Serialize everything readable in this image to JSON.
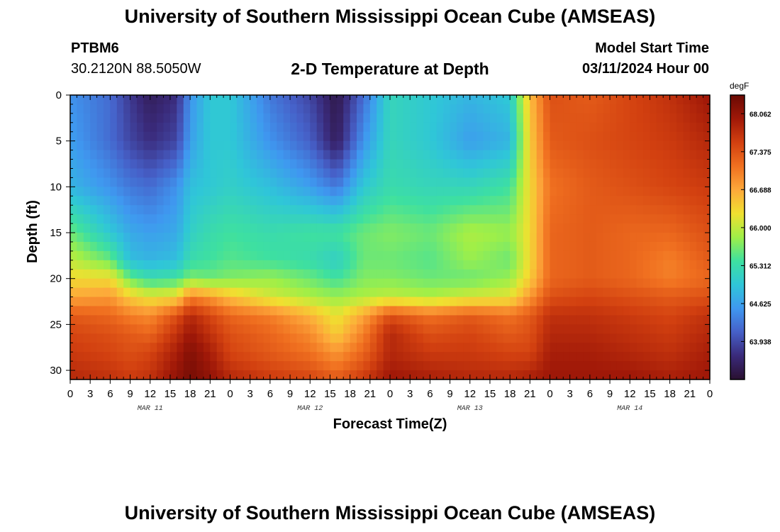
{
  "header": {
    "title": "University of Southern Mississippi Ocean Cube (AMSEAS)",
    "station": "PTBM6",
    "coords": "30.2120N  88.5050W",
    "subtitle": "2-D Temperature at Depth",
    "start_label": "Model Start Time",
    "start_value": "03/11/2024 Hour 00"
  },
  "footer": {
    "title": "University of Southern Mississippi Ocean Cube (AMSEAS)"
  },
  "chart_data": {
    "type": "heatmap",
    "title": "2-D Temperature at Depth",
    "xlabel": "Forecast Time(Z)",
    "ylabel": "Depth (ft)",
    "x_range_hours": [
      0,
      96
    ],
    "ylim": [
      0,
      31
    ],
    "y_inverted": true,
    "x_tick_labels": [
      "0",
      "3",
      "6",
      "9",
      "12",
      "15",
      "18",
      "21",
      "0",
      "3",
      "6",
      "9",
      "12",
      "15",
      "18",
      "21",
      "0",
      "3",
      "6",
      "9",
      "12",
      "15",
      "18",
      "21",
      "0",
      "3",
      "6",
      "9",
      "12",
      "15",
      "18",
      "21",
      "0"
    ],
    "y_ticks": [
      0,
      5,
      10,
      15,
      20,
      25,
      30
    ],
    "day_labels": [
      "MAR 11",
      "MAR 12",
      "MAR 13",
      "MAR 14"
    ],
    "colorbar": {
      "unit": "degF",
      "ticks": [
        "68.062",
        "67.375",
        "66.688",
        "66.000",
        "65.312",
        "64.625",
        "63.938"
      ],
      "min": 63.25,
      "max": 68.4,
      "colors": [
        "#2a1030",
        "#3a2a7a",
        "#4660c8",
        "#3f98f0",
        "#2fc6d8",
        "#3ee0a0",
        "#9fef48",
        "#f0e030",
        "#fda83a",
        "#f07020",
        "#d24010",
        "#a01808",
        "#6a0a04"
      ]
    },
    "grid": false,
    "field": {
      "times_h": [
        0,
        6,
        9,
        12,
        16,
        18,
        21,
        24,
        30,
        36,
        40,
        44,
        48,
        54,
        60,
        66,
        69,
        72,
        78,
        84,
        90,
        96
      ],
      "depths_ft": [
        0,
        5,
        10,
        15,
        18,
        20,
        22,
        24,
        26,
        28,
        31
      ],
      "values_degF": [
        [
          64.5,
          64.2,
          63.8,
          63.5,
          63.7,
          64.5,
          65.0,
          65.0,
          64.3,
          63.9,
          63.4,
          64.2,
          65.2,
          65.0,
          64.8,
          65.0,
          66.5,
          67.4,
          67.3,
          67.5,
          67.7,
          68.0
        ],
        [
          64.6,
          64.2,
          63.9,
          63.7,
          63.9,
          64.6,
          65.0,
          65.0,
          64.5,
          64.1,
          63.5,
          64.5,
          65.2,
          65.0,
          64.6,
          64.8,
          66.4,
          67.3,
          67.4,
          67.5,
          67.6,
          67.8
        ],
        [
          64.8,
          64.5,
          64.3,
          64.2,
          64.5,
          64.9,
          65.0,
          65.1,
          64.9,
          64.6,
          64.3,
          65.0,
          65.3,
          65.2,
          65.2,
          65.4,
          66.3,
          67.1,
          67.3,
          67.4,
          67.5,
          67.6
        ],
        [
          65.6,
          65.0,
          64.7,
          64.6,
          64.7,
          65.1,
          65.3,
          65.4,
          65.3,
          65.4,
          65.4,
          65.6,
          65.7,
          65.6,
          65.9,
          65.8,
          66.3,
          67.2,
          67.3,
          67.2,
          67.2,
          67.4
        ],
        [
          66.0,
          65.6,
          64.9,
          64.8,
          64.9,
          65.3,
          65.4,
          65.5,
          65.4,
          65.3,
          65.1,
          65.6,
          65.6,
          65.5,
          65.8,
          65.6,
          66.3,
          67.2,
          67.3,
          67.2,
          67.0,
          67.3
        ],
        [
          66.3,
          66.3,
          65.6,
          65.3,
          65.4,
          65.7,
          65.6,
          65.7,
          65.8,
          65.6,
          65.4,
          65.7,
          65.7,
          65.6,
          65.6,
          65.8,
          66.4,
          67.2,
          67.3,
          67.2,
          67.0,
          67.2
        ],
        [
          66.7,
          66.8,
          66.4,
          66.2,
          66.3,
          67.0,
          66.8,
          66.5,
          66.1,
          65.9,
          65.8,
          65.9,
          66.0,
          65.9,
          66.1,
          66.2,
          66.8,
          67.4,
          67.5,
          67.4,
          67.3,
          67.4
        ],
        [
          67.3,
          67.2,
          67.0,
          66.9,
          67.4,
          67.8,
          67.5,
          67.2,
          67.0,
          66.6,
          66.2,
          66.7,
          67.4,
          67.1,
          67.3,
          67.1,
          67.3,
          67.7,
          67.7,
          67.6,
          67.5,
          67.7
        ],
        [
          67.5,
          67.4,
          67.3,
          67.2,
          67.7,
          68.0,
          67.7,
          67.4,
          67.2,
          66.9,
          66.4,
          67.0,
          67.8,
          67.4,
          67.5,
          67.3,
          67.4,
          67.8,
          67.8,
          67.7,
          67.6,
          67.8
        ],
        [
          67.6,
          67.5,
          67.4,
          67.5,
          67.9,
          68.2,
          67.9,
          67.5,
          67.3,
          67.1,
          66.8,
          67.2,
          67.8,
          67.6,
          67.6,
          67.5,
          67.5,
          67.9,
          67.9,
          67.8,
          67.7,
          67.9
        ],
        [
          67.8,
          67.7,
          67.6,
          67.7,
          68.1,
          68.3,
          68.1,
          67.8,
          67.6,
          67.5,
          67.3,
          67.6,
          68.0,
          67.9,
          67.8,
          67.8,
          67.9,
          68.0,
          68.0,
          68.0,
          67.9,
          68.0
        ]
      ]
    }
  }
}
